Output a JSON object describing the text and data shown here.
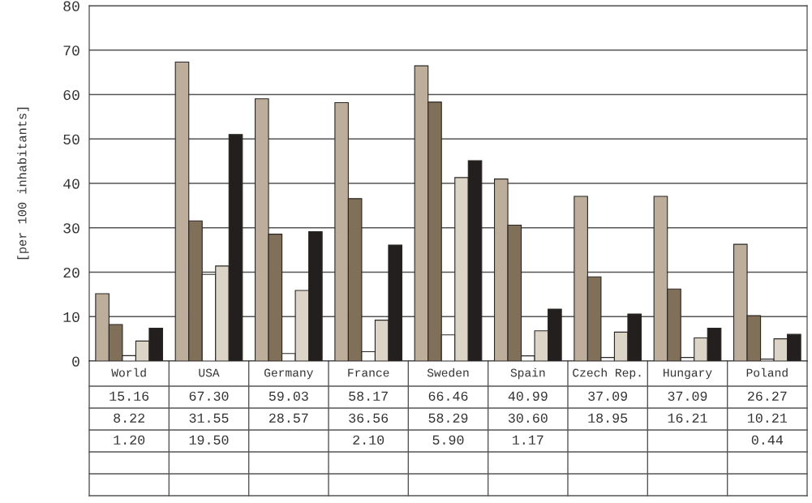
{
  "chart_data": {
    "type": "bar",
    "ylabel": "[per 100 inhabitants]",
    "categories": [
      "World",
      "USA",
      "Germany",
      "France",
      "Sweden",
      "Spain",
      "Czech Rep.",
      "Hungary",
      "Poland"
    ],
    "series": [
      {
        "color": "#bdae9c",
        "values": [
          15.16,
          67.3,
          59.03,
          58.17,
          66.46,
          40.99,
          37.09,
          37.09,
          26.27
        ],
        "value_labels": [
          "15.16",
          "67.30",
          "59.03",
          "58.17",
          "66.46",
          "40.99",
          "37.09",
          "37.09",
          "26.27"
        ]
      },
      {
        "color": "#80705a",
        "values": [
          8.22,
          31.55,
          28.57,
          36.56,
          58.29,
          30.6,
          18.95,
          16.21,
          10.21
        ],
        "value_labels": [
          "8.22",
          "31.55",
          "28.57",
          "36.56",
          "58.29",
          "30.60",
          "18.95",
          "16.21",
          "10.21"
        ]
      },
      {
        "color": "#ffffff",
        "values": [
          1.2,
          19.5,
          1.7,
          2.1,
          5.9,
          1.17,
          0.8,
          0.8,
          0.44
        ],
        "value_labels": [
          "1.20",
          "19.50",
          null,
          "2.10",
          "5.90",
          "1.17",
          null,
          null,
          "0.44"
        ]
      },
      {
        "color": "#ddd4c8",
        "values": [
          4.5,
          21.4,
          15.9,
          9.2,
          41.3,
          6.8,
          6.5,
          5.2,
          5.0
        ],
        "value_labels": [
          null,
          null,
          null,
          null,
          null,
          null,
          null,
          null,
          null
        ]
      },
      {
        "color": "#231f1e",
        "values": [
          7.4,
          51.0,
          29.1,
          26.1,
          45.1,
          11.7,
          10.6,
          7.4,
          6.0
        ],
        "value_labels": [
          null,
          null,
          null,
          null,
          null,
          null,
          null,
          null,
          null
        ]
      }
    ],
    "ylim": [
      0,
      80
    ],
    "yticks": [
      0,
      10,
      20,
      30,
      40,
      50,
      60,
      70,
      80
    ],
    "grid": "y",
    "legend": false
  }
}
